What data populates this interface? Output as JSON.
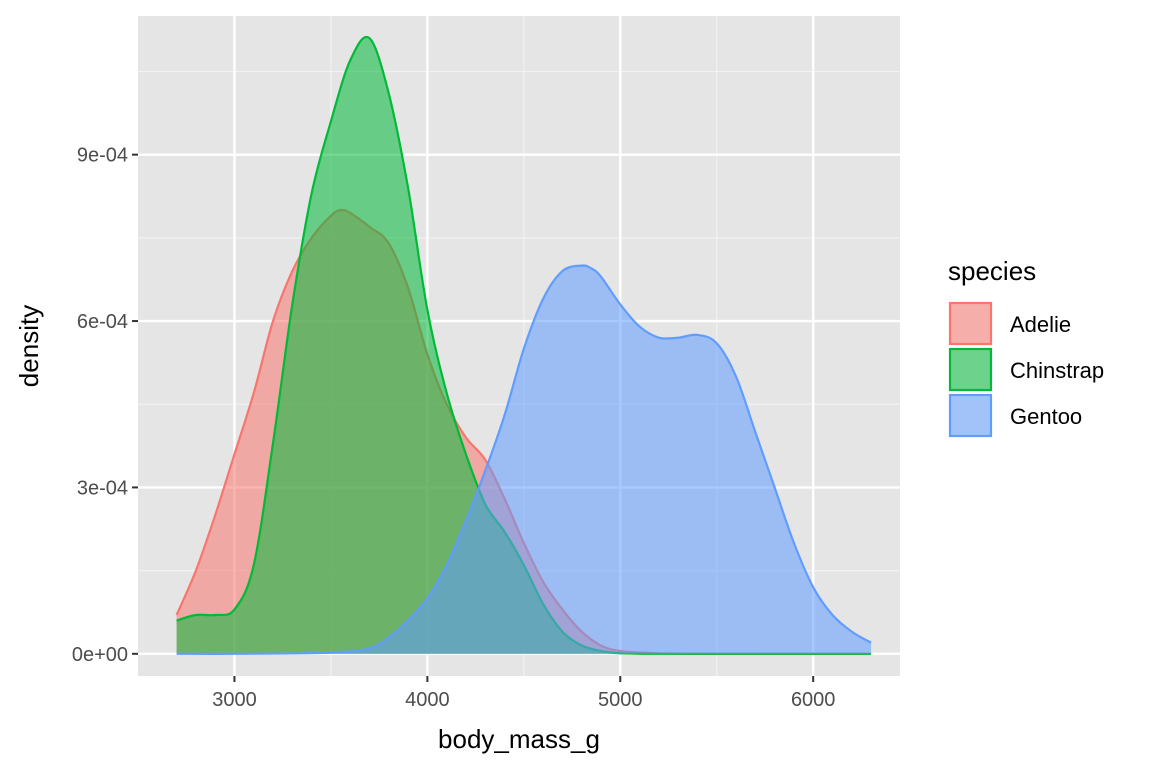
{
  "chart_data": {
    "type": "area",
    "subtype": "density",
    "xlabel": "body_mass_g",
    "ylabel": "density",
    "xlim": [
      2500,
      6450
    ],
    "ylim": [
      -4e-05,
      0.00115
    ],
    "x_ticks": [
      3000,
      4000,
      5000,
      6000
    ],
    "x_tick_labels": [
      "3000",
      "4000",
      "5000",
      "6000"
    ],
    "y_ticks": [
      0,
      0.0003,
      0.0006,
      0.0009
    ],
    "y_tick_labels": [
      "0e+00",
      "3e-04",
      "6e-04",
      "9e-04"
    ],
    "grid": true,
    "panel_background": "#e5e5e5",
    "legend": {
      "title": "species",
      "position": "right",
      "entries": [
        "Adelie",
        "Chinstrap",
        "Gentoo"
      ]
    },
    "series": [
      {
        "name": "Adelie",
        "color": "#f8766d",
        "x": [
          2700,
          2800,
          2900,
          3000,
          3100,
          3200,
          3300,
          3400,
          3500,
          3550,
          3600,
          3700,
          3800,
          3900,
          4000,
          4100,
          4200,
          4300,
          4400,
          4500,
          4600,
          4700,
          4800,
          4900,
          5000,
          5200,
          5500,
          6000,
          6300
        ],
        "y": [
          7e-05,
          0.00015,
          0.00025,
          0.00036,
          0.00047,
          0.0006,
          0.00069,
          0.00075,
          0.00079,
          0.0008,
          0.000795,
          0.00077,
          0.00074,
          0.00066,
          0.00054,
          0.00045,
          0.00039,
          0.00035,
          0.00028,
          0.0002,
          0.00013,
          8e-05,
          4e-05,
          1.5e-05,
          5e-06,
          1e-06,
          0,
          0,
          0
        ]
      },
      {
        "name": "Chinstrap",
        "color": "#00ba38",
        "x": [
          2700,
          2800,
          2900,
          3000,
          3100,
          3200,
          3300,
          3400,
          3500,
          3600,
          3700,
          3800,
          3900,
          4000,
          4100,
          4200,
          4300,
          4400,
          4500,
          4600,
          4700,
          4800,
          4900,
          5000,
          5200,
          5500,
          6000,
          6300
        ],
        "y": [
          6e-05,
          7e-05,
          7e-05,
          8e-05,
          0.00016,
          0.00038,
          0.00063,
          0.00083,
          0.00096,
          0.00107,
          0.00111,
          0.00101,
          0.00084,
          0.00062,
          0.00047,
          0.00036,
          0.00027,
          0.00022,
          0.00016,
          9e-05,
          4e-05,
          1.5e-05,
          5e-06,
          1e-06,
          0,
          0,
          0,
          0
        ]
      },
      {
        "name": "Gentoo",
        "color": "#619cff",
        "x": [
          2700,
          3000,
          3500,
          3700,
          3800,
          3900,
          4000,
          4100,
          4200,
          4300,
          4400,
          4500,
          4600,
          4700,
          4800,
          4850,
          4900,
          5000,
          5100,
          5200,
          5300,
          5400,
          5500,
          5600,
          5700,
          5800,
          5900,
          6000,
          6100,
          6200,
          6300
        ],
        "y": [
          0,
          0,
          2e-06,
          1e-05,
          3e-05,
          6e-05,
          0.0001,
          0.00016,
          0.00024,
          0.00033,
          0.00043,
          0.00055,
          0.00064,
          0.00069,
          0.0007,
          0.000695,
          0.00068,
          0.00063,
          0.00059,
          0.00057,
          0.00057,
          0.000575,
          0.00056,
          0.0005,
          0.0004,
          0.0003,
          0.0002,
          0.00012,
          7e-05,
          4e-05,
          2e-05
        ]
      }
    ]
  }
}
